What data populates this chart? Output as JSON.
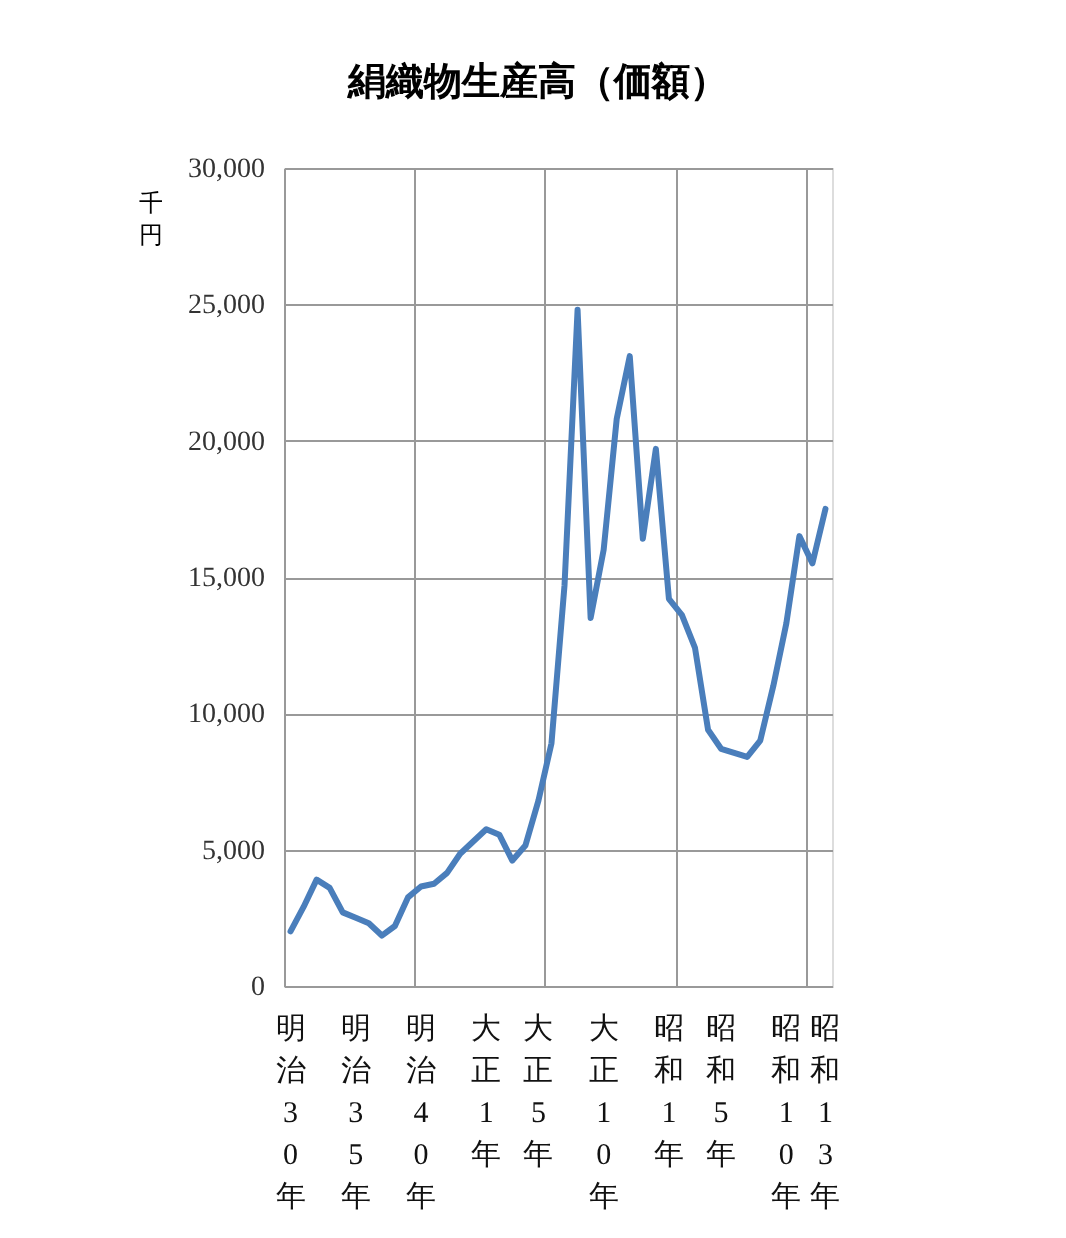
{
  "chart_data": {
    "type": "line",
    "title": "絹織物生産高（価額）",
    "ylabel": "千円",
    "categories": [
      "明治30年",
      null,
      null,
      null,
      null,
      "明治35年",
      null,
      null,
      null,
      null,
      "明治40年",
      null,
      null,
      null,
      null,
      "大正1年",
      null,
      null,
      null,
      "大正5年",
      null,
      null,
      null,
      null,
      "大正10年",
      null,
      null,
      null,
      null,
      "昭和1年",
      null,
      null,
      null,
      "昭和5年",
      null,
      null,
      null,
      null,
      "昭和10年",
      null,
      null,
      "昭和13年"
    ],
    "series": [
      {
        "color": "#4a7ebb",
        "values": [
          2000,
          2900,
          3900,
          3600,
          2700,
          2500,
          2300,
          1850,
          2200,
          3250,
          3650,
          3750,
          4150,
          4850,
          5300,
          5750,
          5550,
          4600,
          5150,
          6800,
          8900,
          14700,
          24800,
          13500,
          16000,
          20800,
          23100,
          16400,
          19700,
          14200,
          13600,
          12400,
          9400,
          8700,
          8550,
          8400,
          9000,
          11000,
          13300,
          16500,
          15500,
          17500
        ]
      }
    ],
    "ylim": [
      0,
      30000
    ],
    "yticks": [
      0,
      {
        "value": 5000,
        "label": "5,000"
      },
      {
        "value": 10000,
        "label": "10,000"
      },
      {
        "value": 15000,
        "label": "15,000"
      },
      {
        "value": 20000,
        "label": "20,000"
      },
      {
        "value": 25000,
        "label": "25,000"
      },
      {
        "value": 30000,
        "label": "30,000"
      }
    ],
    "grid": true,
    "line_style": "solid",
    "marker": "none"
  }
}
